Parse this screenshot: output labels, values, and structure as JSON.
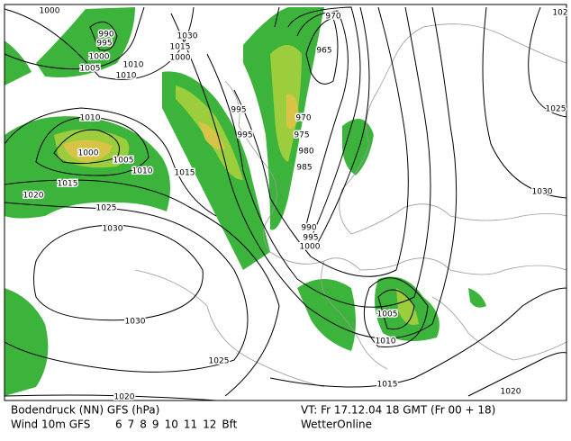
{
  "map": {
    "isobar_labels": [
      "1000",
      "990",
      "995",
      "1000",
      "1005",
      "1010",
      "1010",
      "1030",
      "1015",
      "1000",
      "970",
      "965",
      "995",
      "995",
      "970",
      "975",
      "980",
      "985",
      "1010",
      "1000",
      "1005",
      "1010",
      "1015",
      "1015",
      "1020",
      "1025",
      "1030",
      "990",
      "995",
      "1000",
      "1025",
      "1030",
      "1030",
      "1005",
      "1010",
      "1025",
      "1015",
      "1020",
      "1020",
      "102"
    ]
  },
  "footer": {
    "pressure": "Bodendruck (NN) GFS (hPa)",
    "wind": "Wind 10m GFS",
    "scale": [
      {
        "label": "6",
        "color": "#22b422"
      },
      {
        "label": "7",
        "color": "#9ccd3c"
      },
      {
        "label": "8",
        "color": "#d7c447"
      },
      {
        "label": "9",
        "color": "#e0a030"
      },
      {
        "label": "10",
        "color": "#e07020"
      },
      {
        "label": "11",
        "color": "#d02020"
      },
      {
        "label": "12",
        "color": "#a0105a"
      }
    ],
    "unit": "Bft",
    "valid_time": "VT: Fr 17.12.04 18 GMT (Fr 00 + 18)",
    "source": "WetterOnline"
  }
}
